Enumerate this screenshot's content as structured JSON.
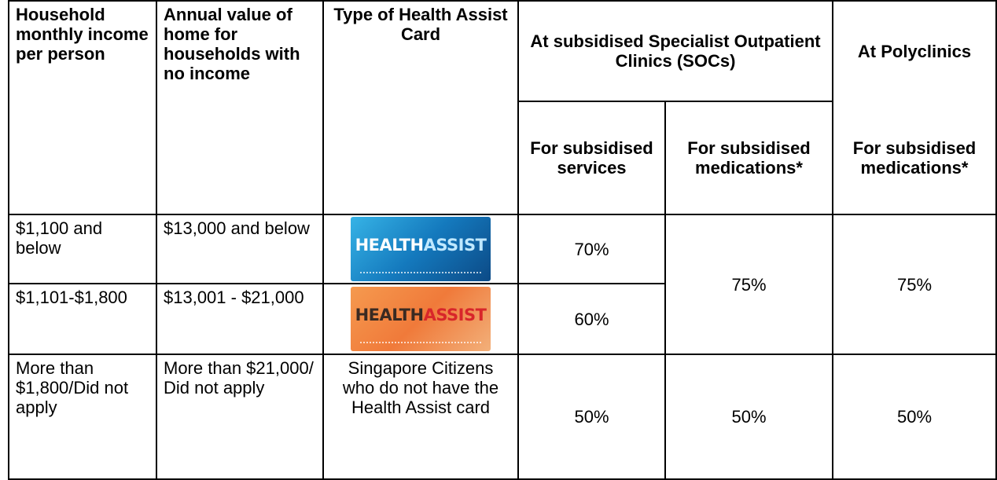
{
  "header": {
    "columns": [
      "Household monthly income per person",
      "Annual value of home for households with no income",
      "Type of Health Assist Card"
    ],
    "soc_group": "At subsidised Specialist Outpatient Clinics (SOCs)",
    "poly_group": "At Polyclinics",
    "subheaders": [
      "For subsidised services",
      "For subsidised medications*",
      "For subsidised medications*"
    ]
  },
  "card": {
    "word1": "HEALTH",
    "word2": "ASSIST"
  },
  "rows": [
    [
      "$1,100 and below",
      "$13,000 and below",
      "70%",
      "75%",
      "75%"
    ],
    [
      "$1,101-$1,800",
      "$13,001 - $21,000",
      "60%"
    ],
    [
      "More than $1,800/Did not apply",
      "More than $21,000/ Did not apply",
      "Singapore Citizens who do not have the Health Assist card",
      "50%",
      "50%",
      "50%"
    ]
  ]
}
